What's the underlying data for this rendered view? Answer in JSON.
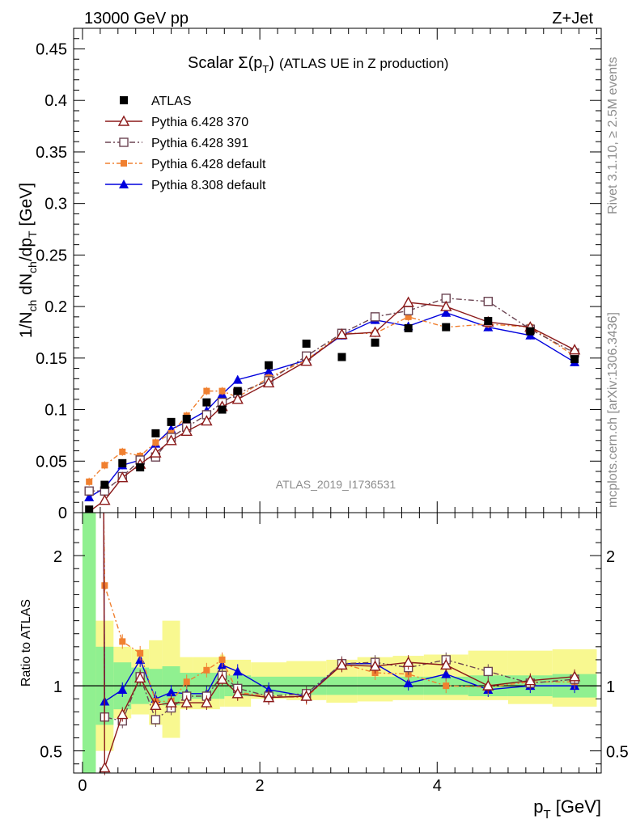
{
  "header": {
    "left": "13000 GeV pp",
    "right": "Z+Jet"
  },
  "side_labels": {
    "rivet": "Rivet 3.1.10, ≥ 2.5M events",
    "mcplots": "mcplots.cern.ch [arXiv:1306.3436]"
  },
  "colors": {
    "ATLAS": "#000000",
    "Pythia 6.428 370": "#8b1a1a",
    "Pythia 6.428 391": "#6b4452",
    "Pythia 6.428 default": "#f08030",
    "Pythia 8.308 default": "#0000dd",
    "band_inner": "#90f090",
    "band_outer": "#f8f890"
  },
  "chart_data": [
    {
      "type": "scatter",
      "title": "Scalar Σ(pT) (ATLAS UE in Z production)",
      "title_main": "Scalar ",
      "title_sigma": "Σ(p",
      "title_sub": "T",
      "title_close": ")",
      "title_rest": "(ATLAS UE in Z production)",
      "watermark": "ATLAS_2019_I1736531",
      "ylabel": "1/Nch dNch/dpT [GeV]",
      "ylabel_parts": {
        "a": "1/N",
        "b": "ch",
        "c": " dN",
        "d": "ch",
        "e": "/dp",
        "f": "T",
        "g": " [GeV]"
      },
      "xlim": [
        -0.1,
        5.85
      ],
      "ylim": [
        0,
        0.47
      ],
      "yticks": [
        0,
        0.05,
        0.1,
        0.15,
        0.2,
        0.25,
        0.3,
        0.35,
        0.4,
        0.45
      ],
      "ytick_labels": [
        "0",
        "0.05",
        "0.1",
        "0.15",
        "0.2",
        "0.25",
        "0.3",
        "0.35",
        "0.4",
        "0.45"
      ],
      "legend_placement": "top-left",
      "x": [
        0.075,
        0.25,
        0.45,
        0.65,
        0.825,
        1.0,
        1.175,
        1.4,
        1.575,
        1.75,
        2.1,
        2.525,
        2.925,
        3.3,
        3.675,
        4.1,
        4.575,
        5.05,
        5.55
      ],
      "series": [
        {
          "name": "ATLAS",
          "marker": "filled-square",
          "values": [
            0.003,
            0.027,
            0.048,
            0.044,
            0.077,
            0.088,
            0.091,
            0.107,
            0.1,
            0.118,
            0.143,
            0.164,
            0.151,
            0.165,
            0.179,
            0.18,
            0.186,
            0.176,
            0.149
          ]
        },
        {
          "name": "Pythia 6.428 370",
          "marker": "open-triangle",
          "values": [
            0.001,
            0.012,
            0.034,
            0.047,
            0.058,
            0.07,
            0.079,
            0.089,
            0.103,
            0.11,
            0.126,
            0.147,
            0.173,
            0.175,
            0.204,
            0.2,
            0.185,
            0.18,
            0.158
          ]
        },
        {
          "name": "Pythia 6.428 391",
          "marker": "open-square",
          "values": [
            0.021,
            0.021,
            0.035,
            0.051,
            0.054,
            0.073,
            0.083,
            0.095,
            0.107,
            0.116,
            0.128,
            0.152,
            0.174,
            0.19,
            0.196,
            0.208,
            0.205,
            0.178,
            0.155
          ]
        },
        {
          "name": "Pythia 6.428 default",
          "marker": "filled-small-square",
          "values": [
            0.03,
            0.046,
            0.059,
            0.055,
            0.068,
            0.077,
            0.094,
            0.118,
            0.118,
            0.112,
            0.131,
            0.148,
            0.174,
            0.174,
            0.19,
            0.18,
            0.183,
            0.18,
            0.152
          ]
        },
        {
          "name": "Pythia 8.308 default",
          "marker": "filled-triangle",
          "values": [
            0.015,
            0.024,
            0.046,
            0.051,
            0.067,
            0.081,
            0.088,
            0.099,
            0.115,
            0.129,
            0.137,
            0.148,
            0.172,
            0.187,
            0.181,
            0.194,
            0.18,
            0.172,
            0.146
          ]
        }
      ]
    },
    {
      "type": "line",
      "ylabel": "Ratio to ATLAS",
      "xlabel": "pT [GeV]",
      "xlabel_main": "p",
      "xlabel_sub": "T",
      "xlabel_unit": " [GeV]",
      "xlim": [
        -0.1,
        5.85
      ],
      "ylim": [
        0.33,
        2.33
      ],
      "xticks": [
        0,
        2,
        4
      ],
      "xtick_labels": [
        "0",
        "2",
        "4"
      ],
      "yticks": [
        0.5,
        1,
        2
      ],
      "ytick_labels": [
        "0.5",
        "1",
        "2"
      ],
      "x_edges": [
        0,
        0.15,
        0.35,
        0.55,
        0.75,
        0.9,
        1.1,
        1.25,
        1.55,
        1.6,
        1.9,
        2.3,
        2.75,
        3.1,
        3.5,
        3.85,
        4.35,
        4.8,
        5.3,
        5.8
      ],
      "band_inner": [
        [
          0.33,
          2.33
        ],
        [
          0.7,
          1.3
        ],
        [
          0.82,
          1.18
        ],
        [
          0.86,
          1.14
        ],
        [
          0.87,
          1.13
        ],
        [
          0.85,
          1.15
        ],
        [
          0.9,
          1.1
        ],
        [
          0.9,
          1.1
        ],
        [
          0.9,
          1.1
        ],
        [
          0.92,
          1.08
        ],
        [
          0.93,
          1.07
        ],
        [
          0.93,
          1.07
        ],
        [
          0.93,
          1.07
        ],
        [
          0.93,
          1.07
        ],
        [
          0.93,
          1.07
        ],
        [
          0.93,
          1.07
        ],
        [
          0.92,
          1.08
        ],
        [
          0.92,
          1.08
        ],
        [
          0.91,
          1.09
        ]
      ],
      "band_outer": [
        [
          0.33,
          2.33
        ],
        [
          0.5,
          1.5
        ],
        [
          0.75,
          1.3
        ],
        [
          0.78,
          1.28
        ],
        [
          0.7,
          1.35
        ],
        [
          0.6,
          1.5
        ],
        [
          0.82,
          1.22
        ],
        [
          0.82,
          1.22
        ],
        [
          0.84,
          1.24
        ],
        [
          0.84,
          1.2
        ],
        [
          0.9,
          1.18
        ],
        [
          0.89,
          1.19
        ],
        [
          0.87,
          1.2
        ],
        [
          0.88,
          1.22
        ],
        [
          0.89,
          1.23
        ],
        [
          0.89,
          1.24
        ],
        [
          0.89,
          1.27
        ],
        [
          0.86,
          1.27
        ],
        [
          0.84,
          1.28
        ]
      ],
      "series": [
        {
          "name": "Pythia 6.428 370",
          "values": [
            null,
            0.37,
            0.78,
            1.06,
            0.85,
            0.87,
            0.87,
            0.87,
            1.05,
            0.94,
            0.91,
            0.92,
            1.16,
            1.15,
            1.18,
            1.16,
            1.0,
            1.04,
            1.07
          ]
        },
        {
          "name": "Pythia 6.428 391",
          "values": [
            null,
            0.76,
            0.73,
            1.07,
            0.74,
            0.83,
            0.92,
            0.92,
            1.08,
            0.98,
            0.92,
            0.94,
            1.17,
            1.18,
            1.14,
            1.2,
            1.11,
            1.02,
            1.05
          ]
        },
        {
          "name": "Pythia 6.428 default",
          "values": [
            null,
            1.77,
            1.34,
            1.25,
            0.88,
            0.88,
            1.03,
            1.12,
            1.2,
            0.95,
            0.92,
            0.91,
            1.17,
            1.1,
            1.09,
            1.0,
            0.99,
            1.03,
            1.03
          ]
        },
        {
          "name": "Pythia 8.308 default",
          "values": [
            null,
            0.88,
            0.97,
            1.2,
            0.9,
            0.95,
            0.94,
            0.94,
            1.16,
            1.11,
            0.97,
            0.92,
            1.17,
            1.17,
            1.02,
            1.09,
            0.97,
            1.0,
            1.0
          ]
        }
      ]
    }
  ]
}
